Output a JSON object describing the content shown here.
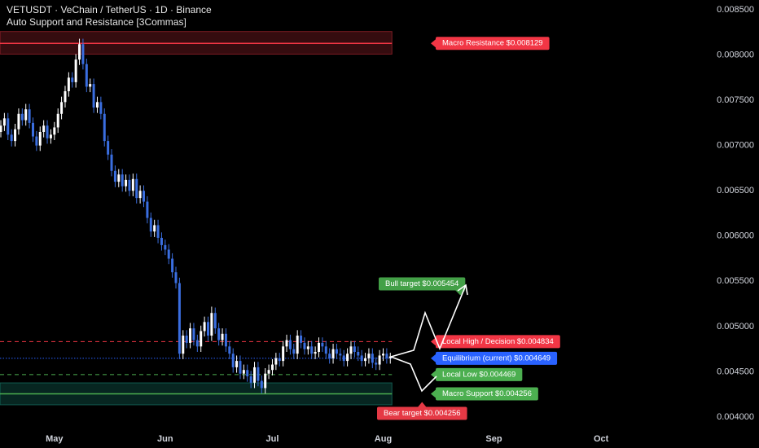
{
  "chart_data": {
    "type": "candlestick",
    "title": "VETUSDT · VeChain / TetherUS · 1D · Binance",
    "subtitle": "Auto Support and Resistance [3Commas]",
    "up_color": "#ffffff",
    "down_color": "#3a6ee0",
    "x": [
      0,
      1,
      2,
      3,
      4,
      5,
      6,
      7,
      8,
      9,
      10,
      11,
      12,
      13,
      14,
      15,
      16,
      17,
      18,
      19,
      20,
      21,
      22,
      23,
      24,
      25,
      26,
      27,
      28,
      29,
      30,
      31,
      32,
      33,
      34,
      35,
      36,
      37,
      38,
      39,
      40,
      41,
      42,
      43,
      44,
      45,
      46,
      47,
      48,
      49,
      50,
      51,
      52,
      53,
      54,
      55,
      56,
      57,
      58,
      59,
      60,
      61,
      62,
      63,
      64,
      65,
      66,
      67,
      68,
      69,
      70,
      71,
      72,
      73,
      74,
      75,
      76,
      77,
      78,
      79,
      80,
      81,
      82,
      83,
      84,
      85,
      86,
      87,
      88,
      89,
      90,
      91,
      92,
      93,
      94,
      95,
      96,
      97,
      98,
      99,
      100,
      101,
      102,
      103,
      104,
      105,
      106,
      107,
      108,
      109
    ],
    "open": [
      0.00715,
      0.00722,
      0.0073,
      0.00712,
      0.00705,
      0.00718,
      0.00735,
      0.00728,
      0.0074,
      0.00725,
      0.0071,
      0.007,
      0.00715,
      0.00722,
      0.00708,
      0.00712,
      0.0072,
      0.00735,
      0.00748,
      0.0076,
      0.00775,
      0.0077,
      0.00795,
      0.00812,
      0.0079,
      0.00765,
      0.00768,
      0.00742,
      0.00748,
      0.00735,
      0.00705,
      0.0069,
      0.00672,
      0.0066,
      0.00668,
      0.00655,
      0.00662,
      0.0065,
      0.00663,
      0.00642,
      0.0065,
      0.00638,
      0.0062,
      0.00605,
      0.00612,
      0.00598,
      0.0059,
      0.00585,
      0.00575,
      0.0056,
      0.00548,
      0.0047,
      0.0049,
      0.00482,
      0.00498,
      0.00485,
      0.00478,
      0.00495,
      0.00505,
      0.0049,
      0.00515,
      0.00498,
      0.00485,
      0.00492,
      0.00478,
      0.0047,
      0.00455,
      0.00462,
      0.00448,
      0.00452,
      0.00445,
      0.00438,
      0.00455,
      0.0044,
      0.00432,
      0.00448,
      0.00452,
      0.00458,
      0.00465,
      0.00462,
      0.00478,
      0.00485,
      0.00475,
      0.0047,
      0.0049,
      0.00482,
      0.00475,
      0.00478,
      0.0047,
      0.00472,
      0.00482,
      0.00478,
      0.0047,
      0.00465,
      0.00475,
      0.0047,
      0.00468,
      0.00462,
      0.0047,
      0.00478,
      0.00472,
      0.00468,
      0.00462,
      0.00465,
      0.0047,
      0.0046,
      0.00458,
      0.00468,
      0.0047,
      0.00465
    ],
    "high": [
      0.00728,
      0.00736,
      0.00736,
      0.00718,
      0.00724,
      0.00741,
      0.00741,
      0.00746,
      0.00746,
      0.00731,
      0.00716,
      0.00721,
      0.00728,
      0.00728,
      0.00718,
      0.00726,
      0.00741,
      0.00754,
      0.00766,
      0.00781,
      0.00781,
      0.00801,
      0.00818,
      0.00818,
      0.00796,
      0.00774,
      0.00774,
      0.00754,
      0.00754,
      0.00741,
      0.00711,
      0.00696,
      0.00678,
      0.00674,
      0.00674,
      0.00668,
      0.00668,
      0.00669,
      0.00669,
      0.00656,
      0.00656,
      0.00644,
      0.00626,
      0.00618,
      0.00618,
      0.00604,
      0.00596,
      0.00591,
      0.00581,
      0.00566,
      0.00554,
      0.00496,
      0.00496,
      0.00504,
      0.00504,
      0.00491,
      0.00501,
      0.00511,
      0.00511,
      0.00522,
      0.00521,
      0.00504,
      0.00498,
      0.00498,
      0.00484,
      0.00476,
      0.00468,
      0.00468,
      0.00458,
      0.00458,
      0.00451,
      0.00461,
      0.00461,
      0.00446,
      0.00454,
      0.00458,
      0.00464,
      0.00471,
      0.00471,
      0.00484,
      0.00491,
      0.00491,
      0.00481,
      0.00496,
      0.00496,
      0.00488,
      0.00484,
      0.00484,
      0.00478,
      0.00488,
      0.00488,
      0.00484,
      0.00476,
      0.00481,
      0.00481,
      0.00476,
      0.00474,
      0.00476,
      0.00484,
      0.00484,
      0.00478,
      0.00474,
      0.00471,
      0.00476,
      0.00476,
      0.00466,
      0.00474,
      0.00476,
      0.00476,
      0.00471
    ],
    "low": [
      0.00709,
      0.00716,
      0.00706,
      0.00699,
      0.00699,
      0.00712,
      0.00722,
      0.00722,
      0.00719,
      0.00704,
      0.00694,
      0.00694,
      0.00709,
      0.00702,
      0.00702,
      0.00706,
      0.00714,
      0.00729,
      0.00742,
      0.00754,
      0.00764,
      0.00764,
      0.00789,
      0.00784,
      0.00759,
      0.00759,
      0.00736,
      0.00736,
      0.00729,
      0.00699,
      0.00684,
      0.00666,
      0.00654,
      0.00654,
      0.00649,
      0.00649,
      0.00644,
      0.00644,
      0.00636,
      0.00636,
      0.00632,
      0.00614,
      0.00599,
      0.00599,
      0.00592,
      0.00584,
      0.00579,
      0.00569,
      0.00554,
      0.00542,
      0.00464,
      0.00464,
      0.00476,
      0.00476,
      0.00479,
      0.00472,
      0.00472,
      0.00489,
      0.00484,
      0.00484,
      0.00492,
      0.00479,
      0.00479,
      0.00472,
      0.00464,
      0.00449,
      0.00449,
      0.00442,
      0.00442,
      0.00439,
      0.00432,
      0.00432,
      0.00434,
      0.00426,
      0.00426,
      0.00442,
      0.00446,
      0.00452,
      0.00456,
      0.00456,
      0.00472,
      0.00469,
      0.00464,
      0.00464,
      0.00476,
      0.00469,
      0.00469,
      0.00464,
      0.00464,
      0.00466,
      0.00472,
      0.00464,
      0.00459,
      0.00459,
      0.00464,
      0.00462,
      0.00456,
      0.00456,
      0.00464,
      0.00466,
      0.00462,
      0.00456,
      0.00456,
      0.00459,
      0.00454,
      0.00452,
      0.00452,
      0.00462,
      0.00459,
      0.00459
    ],
    "close": [
      0.00722,
      0.0073,
      0.00712,
      0.00705,
      0.00718,
      0.00735,
      0.00728,
      0.0074,
      0.00725,
      0.0071,
      0.007,
      0.00715,
      0.00722,
      0.00708,
      0.00712,
      0.0072,
      0.00735,
      0.00748,
      0.0076,
      0.00775,
      0.0077,
      0.00795,
      0.00812,
      0.0079,
      0.00765,
      0.00768,
      0.00742,
      0.00748,
      0.00735,
      0.00705,
      0.0069,
      0.00672,
      0.0066,
      0.00668,
      0.00655,
      0.00662,
      0.0065,
      0.00663,
      0.00642,
      0.0065,
      0.00638,
      0.0062,
      0.00605,
      0.00612,
      0.00598,
      0.0059,
      0.00585,
      0.00575,
      0.0056,
      0.00548,
      0.0047,
      0.0049,
      0.00482,
      0.00498,
      0.00485,
      0.00478,
      0.00495,
      0.00505,
      0.0049,
      0.00515,
      0.00498,
      0.00485,
      0.00492,
      0.00478,
      0.0047,
      0.00455,
      0.00462,
      0.00448,
      0.00452,
      0.00445,
      0.00438,
      0.00455,
      0.0044,
      0.00432,
      0.00448,
      0.00452,
      0.00458,
      0.00465,
      0.00462,
      0.00478,
      0.00485,
      0.00475,
      0.0047,
      0.0049,
      0.00482,
      0.00475,
      0.00478,
      0.0047,
      0.00472,
      0.00482,
      0.00478,
      0.0047,
      0.00465,
      0.00475,
      0.0047,
      0.00468,
      0.00462,
      0.0047,
      0.00478,
      0.00472,
      0.00468,
      0.00462,
      0.00465,
      0.0047,
      0.0046,
      0.00458,
      0.00468,
      0.0047,
      0.00465,
      0.00467
    ],
    "xlim": [
      0,
      196
    ],
    "xticks": [
      {
        "value": 15,
        "label": "May"
      },
      {
        "value": 46,
        "label": "Jun"
      },
      {
        "value": 76,
        "label": "Jul"
      },
      {
        "value": 107,
        "label": "Aug"
      },
      {
        "value": 138,
        "label": "Sep"
      },
      {
        "value": 168,
        "label": "Oct"
      }
    ],
    "ylim": [
      0.003838,
      0.008608
    ],
    "yticks": [
      {
        "value": 0.004,
        "label": "0.004000"
      },
      {
        "value": 0.0045,
        "label": "0.004500"
      },
      {
        "value": 0.005,
        "label": "0.005000"
      },
      {
        "value": 0.0055,
        "label": "0.005500"
      },
      {
        "value": 0.006,
        "label": "0.006000"
      },
      {
        "value": 0.0065,
        "label": "0.006500"
      },
      {
        "value": 0.007,
        "label": "0.007000"
      },
      {
        "value": 0.0075,
        "label": "0.007500"
      },
      {
        "value": 0.008,
        "label": "0.008000"
      },
      {
        "value": 0.0085,
        "label": "0.008500"
      }
    ],
    "zones": [
      {
        "range": [
          0.00801,
          0.00826
        ],
        "color": "#f23645"
      },
      {
        "range": [
          0.004135,
          0.004378
        ],
        "color": "#22ab94"
      }
    ],
    "levels": [
      {
        "label": "Macro Resistance $0.008129",
        "value": 0.008129,
        "color": "#f23645",
        "style": "solid"
      },
      {
        "label": "Local High / Decision $0.004834",
        "value": 0.004834,
        "color": "#f23645",
        "style": "dashed"
      },
      {
        "label": "Equilibrium (current) $0.004649",
        "value": 0.004649,
        "color": "#2962ff",
        "style": "dotted"
      },
      {
        "label": "Local Low $0.004469",
        "value": 0.004469,
        "color": "#4caf50",
        "style": "dashed"
      },
      {
        "label": "Macro Support $0.004256",
        "value": 0.004256,
        "color": "#4caf50",
        "style": "solid"
      }
    ],
    "targets": [
      {
        "label": "Bull target $0.005454",
        "value": 0.005454,
        "color": "#43a047"
      },
      {
        "label": "Bear target $0.004256",
        "value": 0.004256,
        "color": "#e53945"
      }
    ]
  }
}
